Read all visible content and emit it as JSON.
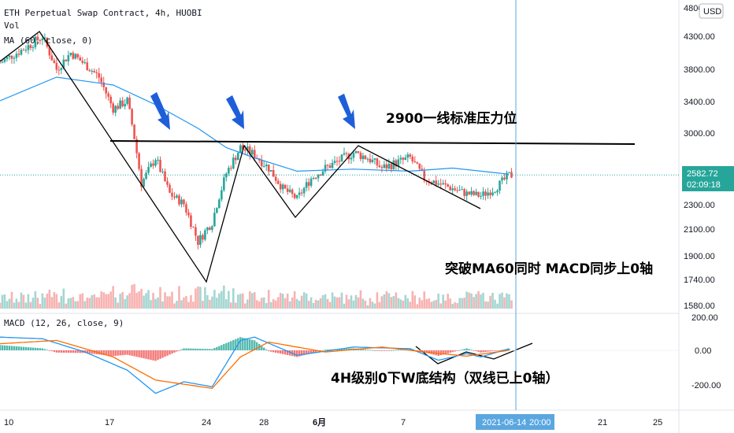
{
  "header": {
    "symbol_line": "ETH Perpetual Swap Contract, 4h, HUOBI",
    "vol_label": "Vol",
    "ma_label": "MA (60, close, 0)",
    "currency_badge": "USD"
  },
  "price_panel": {
    "y_ticks": [
      "4800.00",
      "4300.00",
      "3800.00",
      "3400.00",
      "3000.00",
      "2300.00",
      "2100.00",
      "1900.00",
      "1740.00",
      "1580.00"
    ],
    "current_price": "2582.72",
    "countdown": "02:09:18",
    "resistance_level": 2900
  },
  "macd_panel": {
    "label": "MACD (12, 26, close, 9)",
    "y_ticks": [
      "200.00",
      "0.00",
      "-200.00"
    ]
  },
  "x_axis": {
    "ticks": [
      "10",
      "17",
      "24",
      "28",
      "6月",
      "7",
      "14",
      "21",
      "25"
    ],
    "cursor_date": "2021-06-14",
    "cursor_time": "20:00"
  },
  "annotations": {
    "resistance_text": "2900一线标准压力位",
    "breakout_text": "突破MA60同时 MACD同步上0轴",
    "macd_text": "4H级别0下W底结构（双线已上0轴）"
  },
  "colors": {
    "up": "#26a69a",
    "down": "#ef5350",
    "ma": "#2196f3",
    "macd_line": "#2196f3",
    "signal_line": "#ff6d00",
    "cursor": "#5aa7e0",
    "price_label_bg": "#26a69a"
  },
  "chart_data": {
    "type": "candlestick",
    "title": "ETH Perpetual Swap Contract, 4h, HUOBI",
    "x_range": [
      "2021-05-09",
      "2021-06-26"
    ],
    "ylim": [
      1500,
      4850
    ],
    "close_anchors": [
      {
        "x": "2021-05-09",
        "y": 3900
      },
      {
        "x": "2021-05-11",
        "y": 4150
      },
      {
        "x": "2021-05-12",
        "y": 4300
      },
      {
        "x": "2021-05-13",
        "y": 3800
      },
      {
        "x": "2021-05-14",
        "y": 4050
      },
      {
        "x": "2021-05-16",
        "y": 3700
      },
      {
        "x": "2021-05-17",
        "y": 3300
      },
      {
        "x": "2021-05-18",
        "y": 3400
      },
      {
        "x": "2021-05-19",
        "y": 2500
      },
      {
        "x": "2021-05-20",
        "y": 2750
      },
      {
        "x": "2021-05-21",
        "y": 2400
      },
      {
        "x": "2021-05-22",
        "y": 2300
      },
      {
        "x": "2021-05-23",
        "y": 2000
      },
      {
        "x": "2021-05-24",
        "y": 2150
      },
      {
        "x": "2021-05-25",
        "y": 2600
      },
      {
        "x": "2021-05-26",
        "y": 2850
      },
      {
        "x": "2021-05-27",
        "y": 2780
      },
      {
        "x": "2021-05-28",
        "y": 2650
      },
      {
        "x": "2021-05-29",
        "y": 2450
      },
      {
        "x": "2021-05-30",
        "y": 2350
      },
      {
        "x": "2021-05-31",
        "y": 2550
      },
      {
        "x": "2021-06-01",
        "y": 2650
      },
      {
        "x": "2021-06-03",
        "y": 2800
      },
      {
        "x": "2021-06-04",
        "y": 2750
      },
      {
        "x": "2021-06-05",
        "y": 2650
      },
      {
        "x": "2021-06-06",
        "y": 2700
      },
      {
        "x": "2021-06-07",
        "y": 2750
      },
      {
        "x": "2021-06-08",
        "y": 2550
      },
      {
        "x": "2021-06-09",
        "y": 2500
      },
      {
        "x": "2021-06-10",
        "y": 2450
      },
      {
        "x": "2021-06-11",
        "y": 2400
      },
      {
        "x": "2021-06-12",
        "y": 2380
      },
      {
        "x": "2021-06-13",
        "y": 2450
      },
      {
        "x": "2021-06-14",
        "y": 2580
      }
    ],
    "ma60": [
      {
        "x": "2021-05-09",
        "y": 3400
      },
      {
        "x": "2021-05-13",
        "y": 3700
      },
      {
        "x": "2021-05-17",
        "y": 3600
      },
      {
        "x": "2021-05-20",
        "y": 3350
      },
      {
        "x": "2021-05-23",
        "y": 3050
      },
      {
        "x": "2021-05-25",
        "y": 2850
      },
      {
        "x": "2021-05-27",
        "y": 2750
      },
      {
        "x": "2021-05-30",
        "y": 2620
      },
      {
        "x": "2021-06-03",
        "y": 2640
      },
      {
        "x": "2021-06-07",
        "y": 2620
      },
      {
        "x": "2021-06-10",
        "y": 2650
      },
      {
        "x": "2021-06-14",
        "y": 2590
      }
    ],
    "macd_ylim": [
      -320,
      230
    ],
    "macd": [
      {
        "x": "2021-05-09",
        "y": 80
      },
      {
        "x": "2021-05-12",
        "y": 70
      },
      {
        "x": "2021-05-15",
        "y": -10
      },
      {
        "x": "2021-05-18",
        "y": -120
      },
      {
        "x": "2021-05-20",
        "y": -260
      },
      {
        "x": "2021-05-22",
        "y": -190
      },
      {
        "x": "2021-05-24",
        "y": -220
      },
      {
        "x": "2021-05-26",
        "y": 60
      },
      {
        "x": "2021-05-27",
        "y": 80
      },
      {
        "x": "2021-05-30",
        "y": -30
      },
      {
        "x": "2021-06-03",
        "y": 20
      },
      {
        "x": "2021-06-07",
        "y": 10
      },
      {
        "x": "2021-06-09",
        "y": -60
      },
      {
        "x": "2021-06-11",
        "y": -20
      },
      {
        "x": "2021-06-12",
        "y": -40
      },
      {
        "x": "2021-06-14",
        "y": 10
      }
    ],
    "signal": [
      {
        "x": "2021-05-09",
        "y": 40
      },
      {
        "x": "2021-05-13",
        "y": 60
      },
      {
        "x": "2021-05-17",
        "y": -40
      },
      {
        "x": "2021-05-20",
        "y": -180
      },
      {
        "x": "2021-05-24",
        "y": -230
      },
      {
        "x": "2021-05-26",
        "y": -40
      },
      {
        "x": "2021-05-28",
        "y": 50
      },
      {
        "x": "2021-06-01",
        "y": -10
      },
      {
        "x": "2021-06-05",
        "y": 20
      },
      {
        "x": "2021-06-08",
        "y": -10
      },
      {
        "x": "2021-06-11",
        "y": -35
      },
      {
        "x": "2021-06-14",
        "y": 0
      }
    ]
  }
}
